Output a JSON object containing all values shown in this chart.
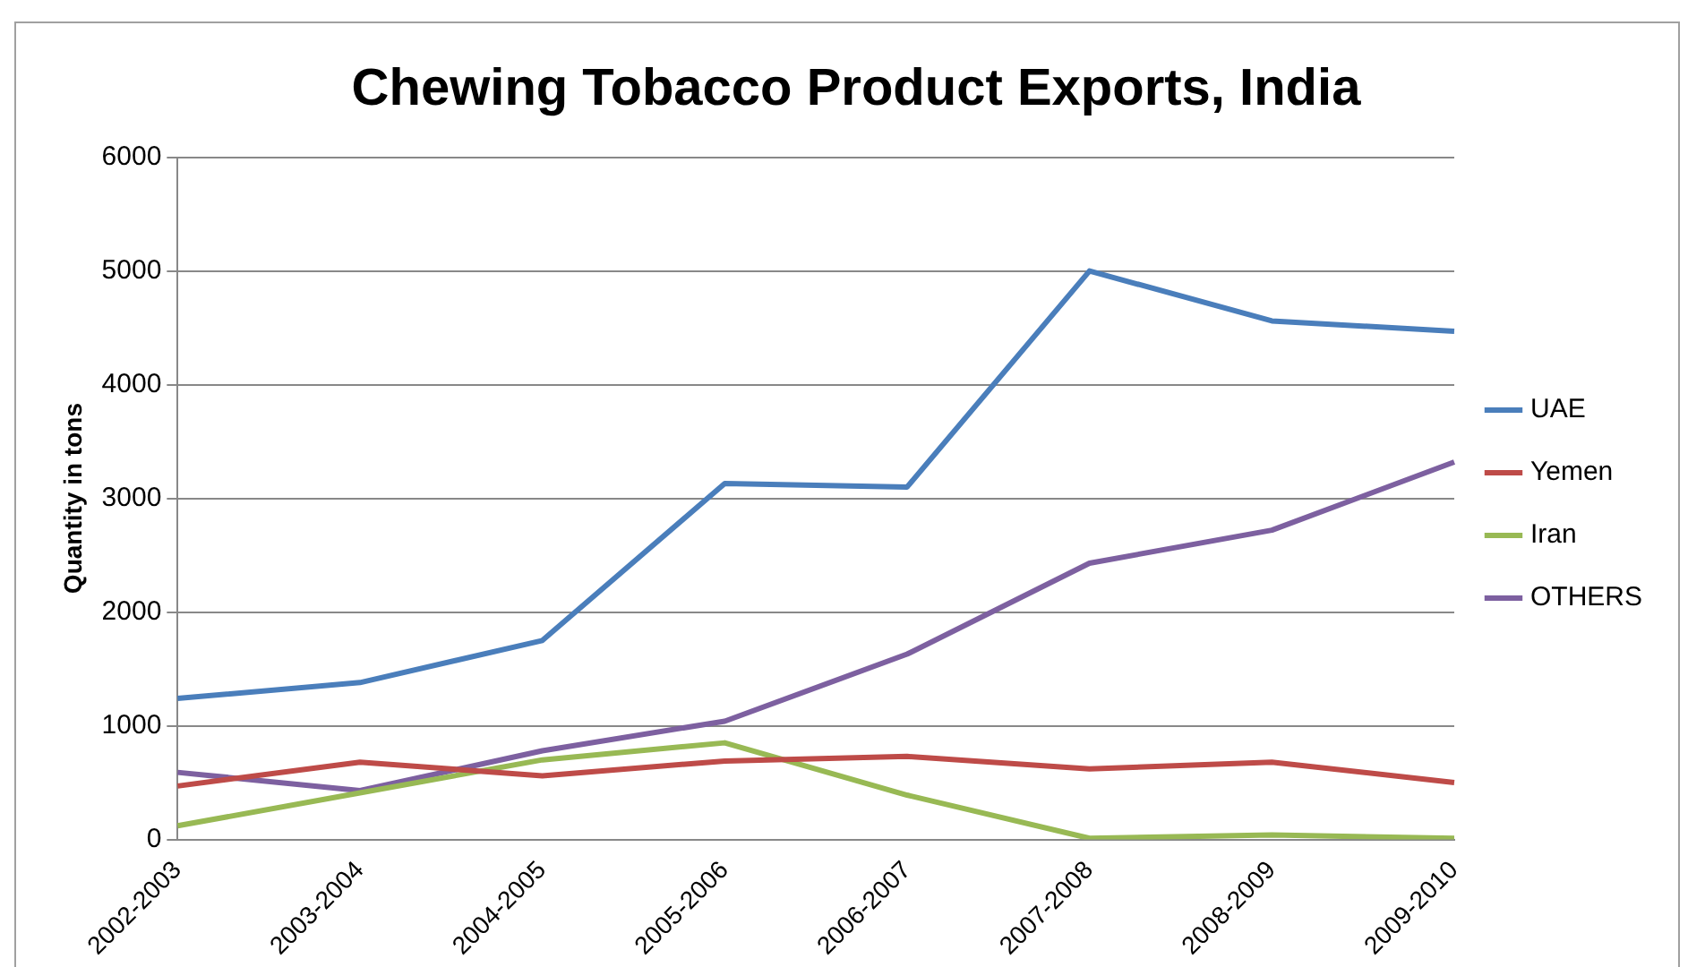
{
  "chart_data": {
    "type": "line",
    "title": "Chewing Tobacco Product Exports, India",
    "ylabel": "Quantity in tons",
    "categories": [
      "2002-2003",
      "2003-2004",
      "2004-2005",
      "2005-2006",
      "2006-2007",
      "2007-2008",
      "2008-2009",
      "2009-2010"
    ],
    "series": [
      {
        "name": "UAE",
        "color": "#4a7ebb",
        "values": [
          1240,
          1380,
          1750,
          3130,
          3100,
          5000,
          4560,
          4470
        ]
      },
      {
        "name": "Yemen",
        "color": "#be4b48",
        "values": [
          470,
          680,
          560,
          690,
          730,
          620,
          680,
          500
        ]
      },
      {
        "name": "Iran",
        "color": "#98b954",
        "values": [
          120,
          410,
          700,
          850,
          390,
          10,
          40,
          10
        ]
      },
      {
        "name": "OTHERS",
        "color": "#7d60a0",
        "values": [
          590,
          430,
          780,
          1040,
          1630,
          2430,
          2720,
          3320
        ]
      }
    ],
    "ylim": [
      0,
      6000
    ],
    "yticks": [
      0,
      1000,
      2000,
      3000,
      4000,
      5000,
      6000
    ],
    "grid": "y",
    "legend": "right",
    "marker": "none",
    "line_style": "solid"
  }
}
